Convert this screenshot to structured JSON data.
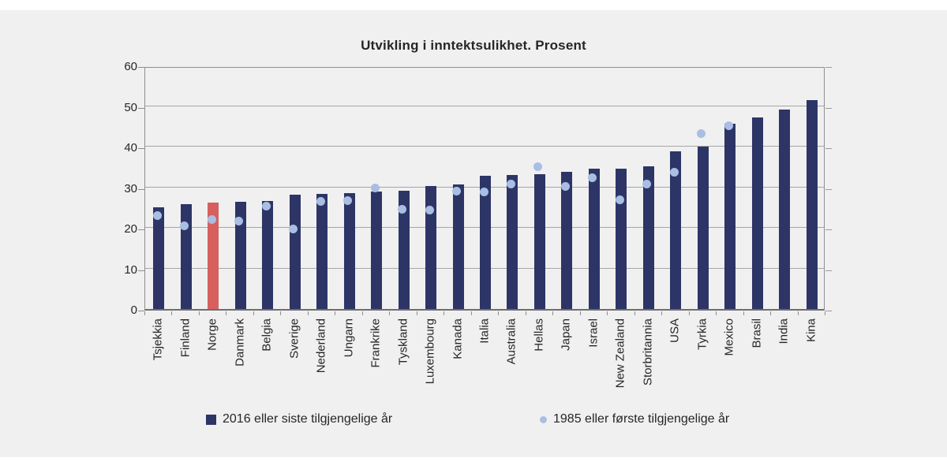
{
  "figure": {
    "title": "Utvikling i inntektsulikhet. Prosent"
  },
  "chart_data": {
    "type": "bar",
    "title": "Utvikling i inntektsulikhet. Prosent",
    "xlabel": "",
    "ylabel": "",
    "ylim": [
      0,
      60
    ],
    "yticks": [
      0,
      10,
      20,
      30,
      40,
      50,
      60
    ],
    "grid": true,
    "legend_position": "bottom",
    "categories": [
      "Tsjekkia",
      "Finland",
      "Norge",
      "Danmark",
      "Belgia",
      "Sverige",
      "Nederland",
      "Ungarn",
      "Frankrike",
      "Tyskland",
      "Luxembourg",
      "Kanada",
      "Italia",
      "Australia",
      "Hellas",
      "Japan",
      "Israel",
      "New Zealand",
      "Storbritannia",
      "USA",
      "Tyrkia",
      "Mexico",
      "Brasil",
      "India",
      "Kina"
    ],
    "series": [
      {
        "name": "2016 eller siste tilgjengelige år",
        "type": "bar",
        "color": "#2d3566",
        "highlight_category": "Norge",
        "highlight_color": "#d6605e",
        "values": [
          25.1,
          25.9,
          26.2,
          26.4,
          26.6,
          28.2,
          28.4,
          28.5,
          28.9,
          29.1,
          30.2,
          30.7,
          32.8,
          33.0,
          33.3,
          33.8,
          34.5,
          34.6,
          35.1,
          38.8,
          40.1,
          45.6,
          47.1,
          49.2,
          51.4
        ]
      },
      {
        "name": "1985 eller første tilgjengelige år",
        "type": "scatter",
        "color": "#a9bee3",
        "values": [
          23.5,
          21.0,
          22.7,
          22.2,
          26.0,
          20.3,
          27.1,
          27.3,
          30.4,
          25.2,
          24.9,
          29.7,
          29.5,
          31.3,
          35.6,
          30.8,
          33.0,
          27.4,
          31.4,
          34.2,
          43.7,
          45.7,
          null,
          null,
          null
        ]
      }
    ]
  },
  "colors": {
    "figure_bg": "#f0f0f0",
    "page_bg": "#ffffff",
    "bar": "#2d3566",
    "bar_highlight": "#d6605e",
    "dot": "#a9bee3",
    "gridline": "#a6a6a6",
    "axis": "#6e6e6e",
    "text": "#262626"
  }
}
